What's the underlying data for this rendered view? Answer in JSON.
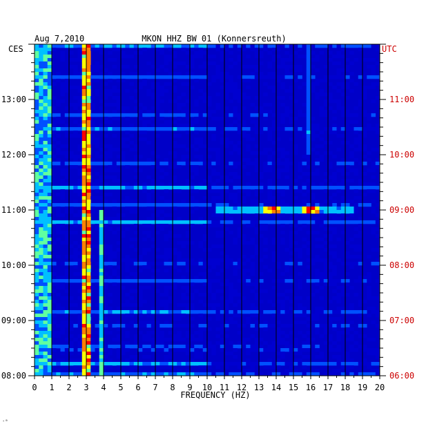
{
  "chart_data": {
    "type": "heatmap",
    "date": "Aug 7,2010",
    "title": "MKON HHZ BW 01 (Konnersreuth)",
    "xlabel": "FREQUENCY (HZ)",
    "xlim": [
      0,
      20
    ],
    "x_ticks": [
      "0",
      "1",
      "2",
      "3",
      "4",
      "5",
      "6",
      "7",
      "8",
      "9",
      "10",
      "11",
      "12",
      "13",
      "14",
      "15",
      "16",
      "17",
      "18",
      "19",
      "20"
    ],
    "left_axis": {
      "label": "CES",
      "ticks": [
        "13:00",
        "12:00",
        "11:00",
        "10:00",
        "09:00",
        "08:00"
      ]
    },
    "right_axis": {
      "label": "UTC",
      "ticks": [
        "11:00",
        "10:00",
        "09:00",
        "08:00",
        "07:00",
        "06:00"
      ]
    },
    "time_range_ces": [
      "08:00",
      "14:00"
    ],
    "colormap": [
      "#00007f",
      "#0000d0",
      "#0050ff",
      "#00c0ff",
      "#60ffa0",
      "#ffff00",
      "#ff8000",
      "#ff0000"
    ],
    "background_color": "#0000c8",
    "features": [
      {
        "name": "3 Hz line",
        "freq": 3.0,
        "time_from": "08:00",
        "time_to": "14:00",
        "intensity": "high"
      },
      {
        "name": "3.9 Hz line",
        "freq": 3.9,
        "time_from": "08:00",
        "time_to": "11:00",
        "intensity": "medium"
      },
      {
        "name": "15.8 Hz line",
        "freq": 15.8,
        "time_from": "12:00",
        "time_to": "14:00",
        "intensity": "low"
      },
      {
        "name": "11:00 burst",
        "time": "11:00",
        "freq_from": 10.5,
        "freq_to": 18.5,
        "peaks": [
          13.8,
          16.0
        ],
        "intensity": "high"
      },
      {
        "name": "low-frequency noise",
        "freq_from": 0,
        "freq_to": 1.0,
        "time_from": "08:00",
        "time_to": "14:00",
        "intensity": "medium"
      }
    ]
  },
  "footer_mark": "·ᵃ"
}
